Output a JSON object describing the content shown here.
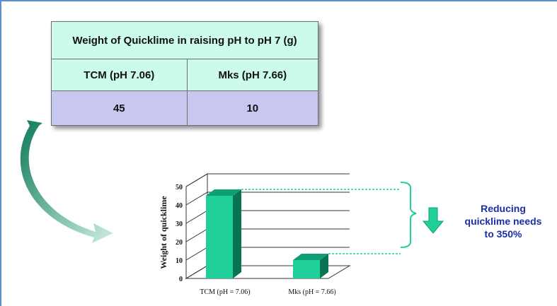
{
  "table": {
    "title": "Weight of Quicklime in raising pH to pH 7 (g)",
    "columns": [
      "TCM  (pH 7.06)",
      "Mks  (pH 7.66)"
    ],
    "values": [
      "45",
      "10"
    ]
  },
  "note": {
    "line1": "Reducing",
    "line2": "quicklime needs",
    "line3": "to 350%"
  },
  "colors": {
    "bar_front": "#1fd09a",
    "bar_top": "#0f9e73",
    "bar_side": "#0a7452",
    "table_header_bg": "#ccfbee",
    "table_value_bg": "#c7c7f0",
    "note_text": "#1a2ea8"
  },
  "chart_data": {
    "type": "bar",
    "categories": [
      "TCM (pH = 7.06)",
      "Mks (pH = 7.66)"
    ],
    "values": [
      45,
      10
    ],
    "ylabel": "Weight of quicklime",
    "xlabel": "",
    "ylim": [
      0,
      50
    ],
    "yticks": [
      0,
      10,
      20,
      30,
      40,
      50
    ],
    "grid": true,
    "style": "3d"
  }
}
